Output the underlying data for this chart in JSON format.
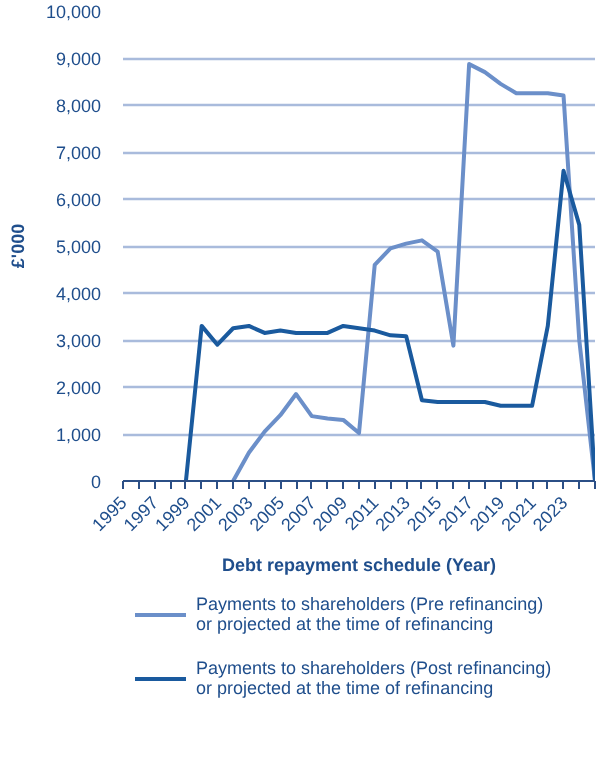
{
  "chart_data": {
    "type": "line",
    "xlabel": "Debt repayment schedule (Year)",
    "ylabel": "£'000",
    "x": [
      1999,
      2000,
      2001,
      2002,
      2003,
      2004,
      2005,
      2006,
      2007,
      2008,
      2009,
      2010,
      2011,
      2012,
      2013,
      2014,
      2015,
      2016,
      2017,
      2018,
      2019,
      2020,
      2021,
      2022,
      2023,
      2024,
      2025
    ],
    "series": [
      {
        "name": "Payments to shareholders (Pre refinancing) or projected at the time of refinancing",
        "color": "#6b8fc9",
        "values": [
          null,
          null,
          null,
          0,
          600,
          1050,
          1400,
          1850,
          1380,
          1330,
          1300,
          1020,
          4600,
          4950,
          5050,
          5120,
          4880,
          2880,
          8870,
          8700,
          8450,
          8250,
          8250,
          8250,
          8200,
          3000,
          0
        ]
      },
      {
        "name": "Payments to shareholders (Post refinancing) or projected at the time of refinancing",
        "color": "#1a5a9e",
        "values": [
          0,
          3300,
          2900,
          3250,
          3300,
          3150,
          3200,
          3150,
          3150,
          3150,
          3300,
          3250,
          3200,
          3100,
          3080,
          1720,
          1680,
          1680,
          1680,
          1680,
          1600,
          1600,
          1600,
          3300,
          6600,
          5450,
          0
        ]
      }
    ],
    "xlim": [
      1995,
      2025
    ],
    "xticks": [
      1995,
      1997,
      1999,
      2001,
      2003,
      2005,
      2007,
      2009,
      2011,
      2013,
      2015,
      2017,
      2019,
      2021,
      2023
    ],
    "ylim": [
      0,
      10000
    ],
    "yticks": [
      {
        "value": 0,
        "label": "0"
      },
      {
        "value": 1000,
        "label": "1,000"
      },
      {
        "value": 2000,
        "label": "2,000"
      },
      {
        "value": 3000,
        "label": "3,000"
      },
      {
        "value": 4000,
        "label": "4,000"
      },
      {
        "value": 5000,
        "label": "5,000"
      },
      {
        "value": 6000,
        "label": "6,000"
      },
      {
        "value": 7000,
        "label": "7,000"
      },
      {
        "value": 8000,
        "label": "8,000"
      },
      {
        "value": 9000,
        "label": "9,000"
      },
      {
        "value": 10000,
        "label": "10,000"
      }
    ],
    "grid": "y",
    "legend": "bottom",
    "marker": "none",
    "line_style": "solid"
  }
}
